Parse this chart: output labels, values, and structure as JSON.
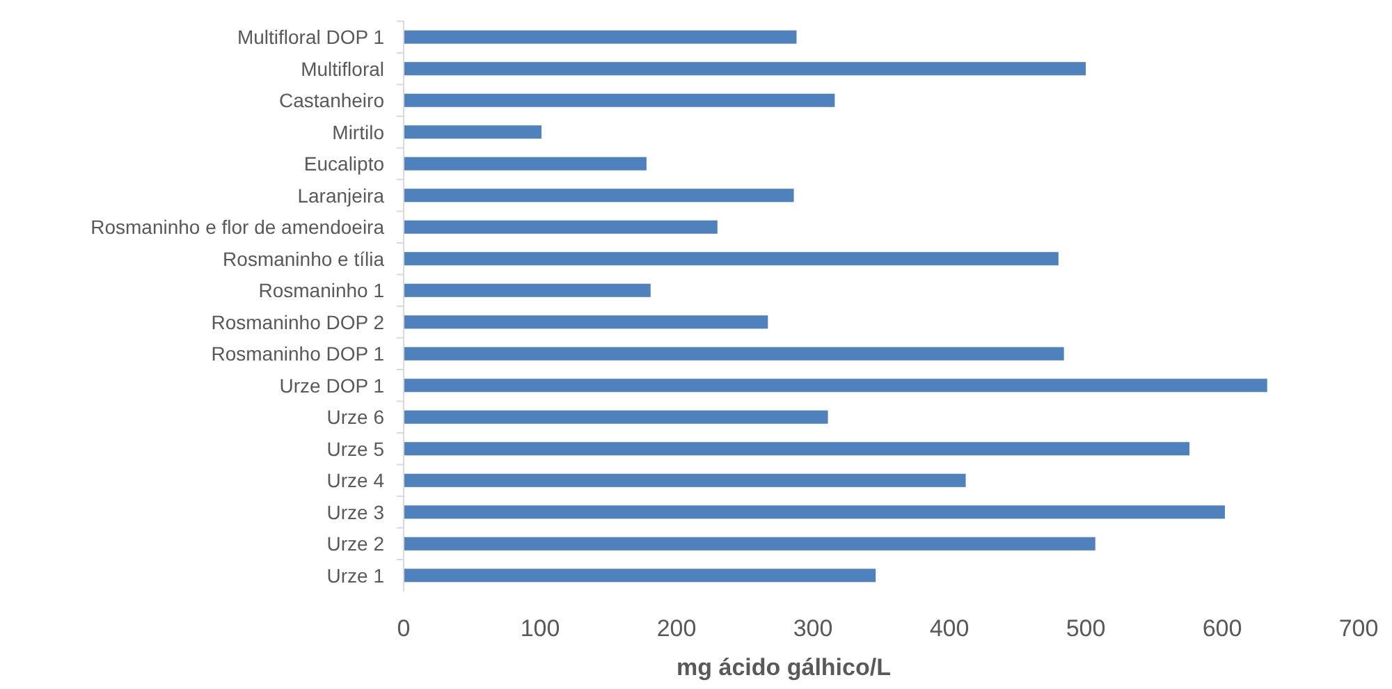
{
  "chart_data": {
    "type": "bar",
    "orientation": "horizontal",
    "xlabel": "mg ácido gálhico/L",
    "categories": [
      "Multifloral DOP 1",
      "Multifloral",
      "Castanheiro",
      "Mirtilo",
      "Eucalipto",
      "Laranjeira",
      "Rosmaninho e flor de amendoeira",
      "Rosmaninho e tília",
      "Rosmaninho 1",
      "Rosmaninho DOP 2",
      "Rosmaninho DOP 1",
      "Urze DOP 1",
      "Urze 6",
      "Urze 5",
      "Urze 4",
      "Urze 3",
      "Urze 2",
      "Urze 1"
    ],
    "values": [
      288,
      500,
      316,
      101,
      178,
      286,
      230,
      480,
      181,
      267,
      484,
      633,
      311,
      576,
      412,
      602,
      507,
      346
    ],
    "color": "#4f81bd",
    "xlim": [
      0,
      700
    ],
    "xticks": [
      0,
      100,
      200,
      300,
      400,
      500,
      600,
      700
    ],
    "grid": false
  }
}
